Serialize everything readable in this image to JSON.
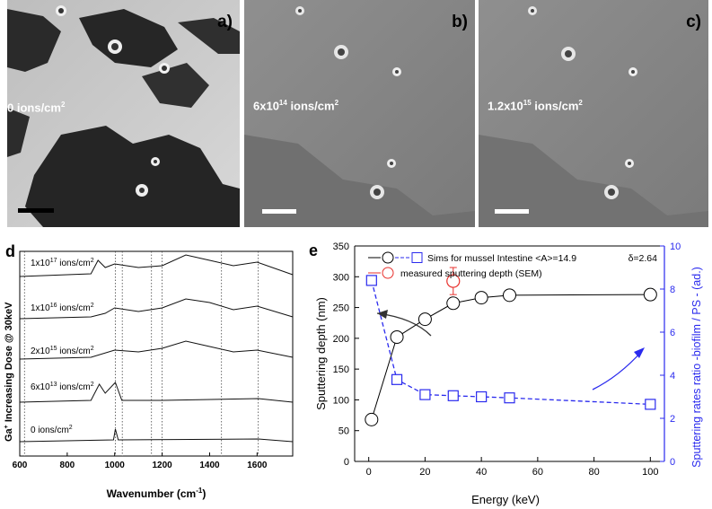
{
  "figure": {
    "panel_a": {
      "letter": "a)",
      "dose_base": "0 ions/cm",
      "dose_sup": "2"
    },
    "panel_b": {
      "letter": "b)",
      "dose_base": "6x10",
      "dose_exp": "14",
      "dose_unit": " ions/cm",
      "dose_sup": "2"
    },
    "panel_c": {
      "letter": "c)",
      "dose_base": "1.2x10",
      "dose_exp": "15",
      "dose_unit": " ions/cm",
      "dose_sup": "2"
    }
  },
  "colors": {
    "black": "#000000",
    "blue": "#2a2aee",
    "red": "#e8302c",
    "sem_gray": "#8a8a8a"
  },
  "chart_data": [
    {
      "panel": "d",
      "letter": "d",
      "type": "line",
      "xlabel": "Wavenumber (cm",
      "xlabel_sup": "-1",
      "xlabel_end": ")",
      "ylabel_base": "Ga",
      "ylabel_sup": "+",
      "ylabel_rest": " Increasing Dose @ 30keV",
      "xlim": [
        600,
        1750
      ],
      "xticks": [
        600,
        800,
        1000,
        1200,
        1400,
        1600
      ],
      "vlines": [
        620,
        1003,
        1032,
        1155,
        1200,
        1450,
        1605
      ],
      "spectra": [
        {
          "label_base": "1x10",
          "label_exp": "17",
          "label_unit": " ions/cm",
          "label_sup": "2"
        },
        {
          "label_base": "1x10",
          "label_exp": "16",
          "label_unit": " ions/cm",
          "label_sup": "2"
        },
        {
          "label_base": "2x10",
          "label_exp": "15",
          "label_unit": " ions/cm",
          "label_sup": "2"
        },
        {
          "label_base": "6x10",
          "label_exp": "13",
          "label_unit": " ions/cm",
          "label_sup": "2"
        },
        {
          "label_base": "0 ions/cm",
          "label_exp": "",
          "label_unit": "",
          "label_sup": "2"
        }
      ]
    },
    {
      "panel": "e",
      "letter": "e",
      "type": "scatter",
      "xlabel": "Energy (keV)",
      "ylabel": "Sputtering depth (nm)",
      "y2label": "Sputtering rates ratio -biofilm / PS - (ad.)",
      "xlim": [
        -5,
        105
      ],
      "ylim": [
        0,
        350
      ],
      "y2lim": [
        0,
        10
      ],
      "xticks": [
        0,
        20,
        40,
        60,
        80,
        100
      ],
      "yticks": [
        0,
        50,
        100,
        150,
        200,
        250,
        300,
        350
      ],
      "y2ticks": [
        0,
        2,
        4,
        6,
        8,
        10
      ],
      "legend": {
        "sims": "Sims for mussel Intestine <A>=14.9",
        "delta": "δ=2.64",
        "measured": "measured sputtering depth (SEM)"
      },
      "series": [
        {
          "name": "Sims for mussel Intestine <A>=14.9",
          "axis": "left",
          "marker": "circle",
          "color": "#000000",
          "x": [
            1,
            10,
            20,
            30,
            40,
            50,
            100
          ],
          "y": [
            68,
            202,
            231,
            257,
            266,
            270,
            271
          ]
        },
        {
          "name": "",
          "axis": "right",
          "marker": "square",
          "color": "#2a2aee",
          "x": [
            1,
            10,
            20,
            30,
            40,
            50,
            100
          ],
          "y": [
            8.4,
            3.8,
            3.1,
            3.05,
            3.0,
            2.95,
            2.65
          ]
        },
        {
          "name": "measured sputtering depth (SEM)",
          "axis": "left",
          "marker": "circle",
          "color": "#e8302c",
          "x": [
            30
          ],
          "y": [
            293
          ],
          "err": [
            22
          ]
        }
      ]
    }
  ]
}
